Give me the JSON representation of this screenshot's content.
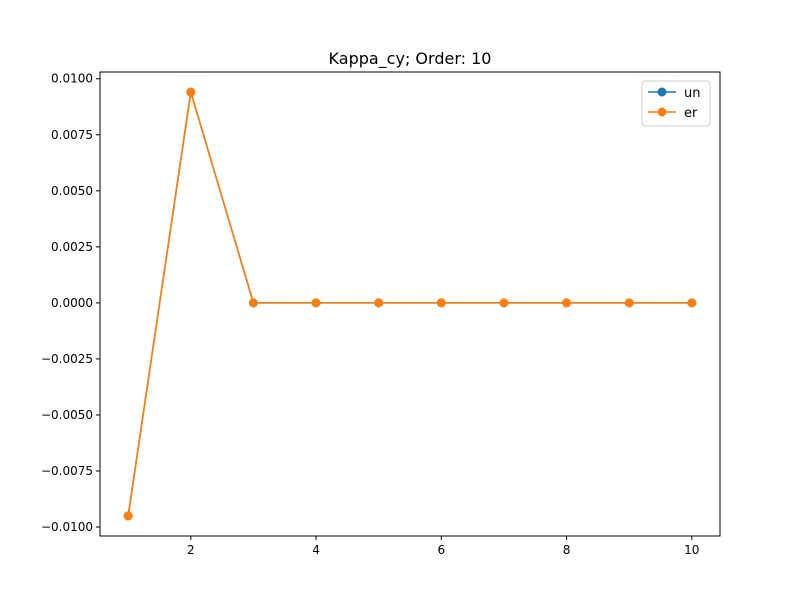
{
  "chart_data": {
    "type": "line",
    "title": "Kappa_cy; Order: 10",
    "xlabel": "",
    "ylabel": "",
    "x": [
      1,
      2,
      3,
      4,
      5,
      6,
      7,
      8,
      9,
      10
    ],
    "xlim": [
      0.55,
      10.45
    ],
    "ylim": [
      -0.0104,
      0.0103
    ],
    "xticks": [
      2,
      4,
      6,
      8,
      10
    ],
    "xtick_labels": [
      "2",
      "4",
      "6",
      "8",
      "10"
    ],
    "yticks": [
      -0.01,
      -0.0075,
      -0.005,
      -0.0025,
      0.0,
      0.0025,
      0.005,
      0.0075,
      0.01
    ],
    "ytick_labels": [
      "−0.0100",
      "−0.0075",
      "−0.0050",
      "−0.0025",
      "0.0000",
      "0.0025",
      "0.0050",
      "0.0075",
      "0.0100"
    ],
    "grid": false,
    "legend_position": "top-right",
    "series": [
      {
        "name": "un",
        "color": "#1f77b4",
        "values": [
          -0.0095,
          0.0094,
          0.0,
          0.0,
          0.0,
          0.0,
          0.0,
          0.0,
          0.0,
          0.0
        ]
      },
      {
        "name": "er",
        "color": "#ff7f0e",
        "values": [
          -0.0095,
          0.0094,
          0.0,
          0.0,
          0.0,
          0.0,
          0.0,
          0.0,
          0.0,
          0.0
        ]
      }
    ]
  }
}
